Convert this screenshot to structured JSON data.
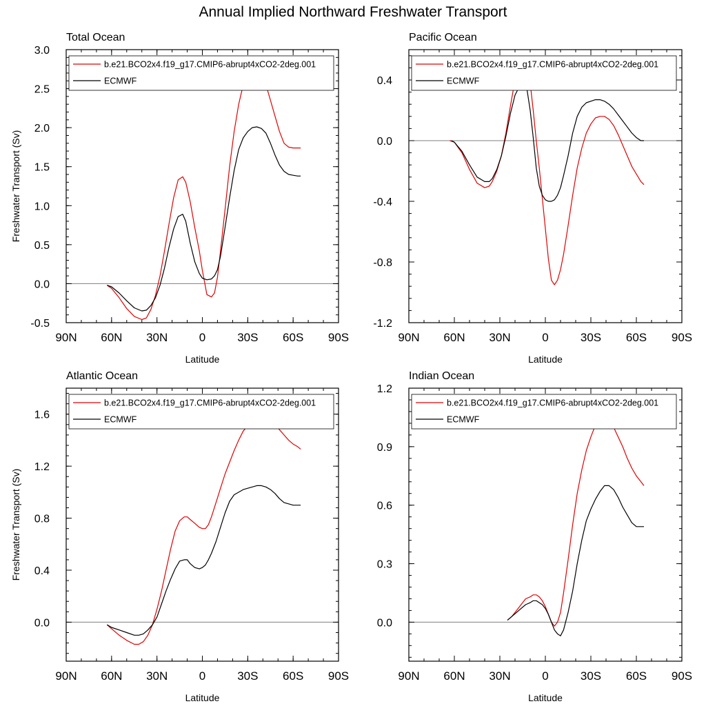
{
  "figure": {
    "title": "Annual Implied Northward Freshwater Transport"
  },
  "chart_data": [
    {
      "type": "line",
      "title": "Total Ocean",
      "xlabel": "Latitude",
      "ylabel": "Freshwater Transport (Sv)",
      "xlim": [
        -90,
        90
      ],
      "ylim": [
        -0.5,
        3.0
      ],
      "xticks": [
        -90,
        -60,
        -30,
        0,
        30,
        60,
        90
      ],
      "xtick_labels": [
        "90N",
        "60N",
        "30N",
        "0",
        "30S",
        "60S",
        "90S"
      ],
      "yticks": [
        -0.5,
        0.0,
        0.5,
        1.0,
        1.5,
        2.0,
        2.5,
        3.0
      ],
      "ytick_labels": [
        "-0.5",
        "0.0",
        "0.5",
        "1.0",
        "1.5",
        "2.0",
        "2.5",
        "3.0"
      ],
      "zero_line": true,
      "legend": "top",
      "series": [
        {
          "name": "b.e21.BCO2x4.f19_g17.CMIP6-abrupt4xCO2-2deg.001",
          "color": "#e00000",
          "x": [
            -63,
            -60,
            -55,
            -50,
            -45,
            -40,
            -37,
            -34,
            -31,
            -28,
            -25,
            -22,
            -19,
            -16,
            -13,
            -11,
            -8,
            -5,
            -2,
            0,
            3,
            6,
            8,
            10,
            12,
            15,
            18,
            21,
            24,
            27,
            30,
            33,
            36,
            39,
            42,
            45,
            48,
            51,
            54,
            57,
            60,
            63,
            65
          ],
          "y": [
            -0.02,
            -0.06,
            -0.18,
            -0.32,
            -0.42,
            -0.46,
            -0.44,
            -0.33,
            -0.15,
            0.1,
            0.42,
            0.77,
            1.1,
            1.33,
            1.37,
            1.3,
            1.05,
            0.72,
            0.42,
            0.17,
            -0.14,
            -0.17,
            -0.12,
            0.08,
            0.42,
            0.95,
            1.5,
            1.95,
            2.3,
            2.55,
            2.7,
            2.77,
            2.76,
            2.7,
            2.55,
            2.35,
            2.15,
            1.95,
            1.8,
            1.75,
            1.74,
            1.74,
            1.74
          ]
        },
        {
          "name": "ECMWF",
          "color": "#000000",
          "x": [
            -63,
            -60,
            -55,
            -50,
            -45,
            -40,
            -37,
            -34,
            -31,
            -28,
            -25,
            -22,
            -19,
            -16,
            -13,
            -11,
            -8,
            -5,
            -2,
            0,
            3,
            6,
            8,
            10,
            12,
            15,
            18,
            21,
            24,
            27,
            30,
            33,
            36,
            39,
            42,
            45,
            48,
            51,
            54,
            57,
            60,
            63,
            65
          ],
          "y": [
            -0.02,
            -0.04,
            -0.12,
            -0.22,
            -0.31,
            -0.35,
            -0.34,
            -0.28,
            -0.18,
            -0.02,
            0.2,
            0.47,
            0.7,
            0.86,
            0.89,
            0.8,
            0.52,
            0.28,
            0.13,
            0.07,
            0.05,
            0.06,
            0.1,
            0.18,
            0.35,
            0.72,
            1.1,
            1.45,
            1.72,
            1.87,
            1.95,
            2.0,
            2.01,
            1.99,
            1.93,
            1.8,
            1.65,
            1.52,
            1.44,
            1.4,
            1.39,
            1.38,
            1.38
          ]
        }
      ]
    },
    {
      "type": "line",
      "title": "Pacific Ocean",
      "xlabel": "Latitude",
      "ylabel": "",
      "xlim": [
        -90,
        90
      ],
      "ylim": [
        -1.2,
        0.6
      ],
      "xticks": [
        -90,
        -60,
        -30,
        0,
        30,
        60,
        90
      ],
      "xtick_labels": [
        "90N",
        "60N",
        "30N",
        "0",
        "30S",
        "60S",
        "90S"
      ],
      "yticks": [
        -1.2,
        -0.8,
        -0.4,
        0.0,
        0.4
      ],
      "ytick_labels": [
        "-1.2",
        "-0.8",
        "-0.4",
        "0.0",
        "0.4"
      ],
      "zero_line": true,
      "legend": "top",
      "series": [
        {
          "name": "b.e21.BCO2x4.f19_g17.CMIP6-abrupt4xCO2-2deg.001",
          "color": "#e00000",
          "x": [
            -63,
            -60,
            -55,
            -50,
            -45,
            -40,
            -37,
            -35,
            -32,
            -29,
            -26,
            -23,
            -20,
            -17,
            -14,
            -12,
            -10,
            -8,
            -6,
            -4,
            -2,
            0,
            2,
            4,
            6,
            8,
            10,
            12,
            15,
            18,
            21,
            24,
            27,
            30,
            33,
            36,
            39,
            42,
            45,
            48,
            51,
            54,
            57,
            60,
            63,
            65
          ],
          "y": [
            0.0,
            -0.01,
            -0.08,
            -0.19,
            -0.28,
            -0.31,
            -0.3,
            -0.27,
            -0.2,
            -0.1,
            0.05,
            0.23,
            0.4,
            0.5,
            0.53,
            0.5,
            0.38,
            0.2,
            0.0,
            -0.18,
            -0.38,
            -0.58,
            -0.78,
            -0.92,
            -0.95,
            -0.92,
            -0.85,
            -0.75,
            -0.56,
            -0.36,
            -0.18,
            -0.05,
            0.05,
            0.11,
            0.15,
            0.16,
            0.16,
            0.14,
            0.1,
            0.04,
            -0.03,
            -0.1,
            -0.17,
            -0.22,
            -0.27,
            -0.29
          ]
        },
        {
          "name": "ECMWF",
          "color": "#000000",
          "x": [
            -62,
            -60,
            -55,
            -50,
            -45,
            -40,
            -37,
            -35,
            -32,
            -29,
            -26,
            -23,
            -20,
            -17,
            -14,
            -12,
            -10,
            -8,
            -6,
            -4,
            -2,
            0,
            2,
            4,
            6,
            8,
            10,
            12,
            15,
            18,
            21,
            24,
            27,
            30,
            33,
            36,
            39,
            42,
            45,
            48,
            51,
            54,
            57,
            60,
            63,
            65
          ],
          "y": [
            0.0,
            -0.01,
            -0.07,
            -0.16,
            -0.24,
            -0.27,
            -0.27,
            -0.25,
            -0.19,
            -0.1,
            0.03,
            0.18,
            0.3,
            0.36,
            0.37,
            0.33,
            0.2,
            0.02,
            -0.18,
            -0.3,
            -0.36,
            -0.39,
            -0.4,
            -0.4,
            -0.39,
            -0.36,
            -0.31,
            -0.23,
            -0.1,
            0.05,
            0.16,
            0.22,
            0.25,
            0.26,
            0.27,
            0.27,
            0.26,
            0.24,
            0.21,
            0.17,
            0.13,
            0.09,
            0.05,
            0.02,
            0.0,
            0.0
          ]
        }
      ]
    },
    {
      "type": "line",
      "title": "Atlantic Ocean",
      "xlabel": "Latitude",
      "ylabel": "Freshwater Transport (Sv)",
      "xlim": [
        -90,
        90
      ],
      "ylim": [
        -0.3,
        1.8
      ],
      "xticks": [
        -90,
        -60,
        -30,
        0,
        30,
        60,
        90
      ],
      "xtick_labels": [
        "90N",
        "60N",
        "30N",
        "0",
        "30S",
        "60S",
        "90S"
      ],
      "yticks": [
        0.0,
        0.4,
        0.8,
        1.2,
        1.6
      ],
      "ytick_labels": [
        "0.0",
        "0.4",
        "0.8",
        "1.2",
        "1.6"
      ],
      "zero_line": true,
      "legend": "top",
      "series": [
        {
          "name": "b.e21.BCO2x4.f19_g17.CMIP6-abrupt4xCO2-2deg.001",
          "color": "#e00000",
          "x": [
            -63,
            -60,
            -55,
            -50,
            -45,
            -42,
            -39,
            -36,
            -33,
            -30,
            -27,
            -24,
            -21,
            -18,
            -15,
            -12,
            -10,
            -8,
            -5,
            -2,
            0,
            2,
            4,
            6,
            9,
            12,
            15,
            18,
            21,
            24,
            27,
            30,
            33,
            36,
            39,
            42,
            45,
            48,
            51,
            54,
            57,
            60,
            63,
            65
          ],
          "y": [
            -0.02,
            -0.05,
            -0.1,
            -0.14,
            -0.17,
            -0.17,
            -0.15,
            -0.1,
            -0.02,
            0.1,
            0.24,
            0.4,
            0.56,
            0.7,
            0.78,
            0.81,
            0.81,
            0.79,
            0.76,
            0.73,
            0.72,
            0.72,
            0.75,
            0.81,
            0.92,
            1.03,
            1.14,
            1.23,
            1.32,
            1.4,
            1.47,
            1.51,
            1.55,
            1.56,
            1.57,
            1.57,
            1.55,
            1.52,
            1.48,
            1.44,
            1.4,
            1.37,
            1.35,
            1.33
          ]
        },
        {
          "name": "ECMWF",
          "color": "#000000",
          "x": [
            -63,
            -60,
            -55,
            -50,
            -45,
            -42,
            -39,
            -36,
            -33,
            -30,
            -27,
            -24,
            -21,
            -18,
            -15,
            -12,
            -10,
            -8,
            -5,
            -2,
            0,
            2,
            4,
            6,
            9,
            12,
            15,
            18,
            21,
            24,
            27,
            30,
            33,
            36,
            39,
            42,
            45,
            48,
            51,
            54,
            57,
            60,
            63,
            65
          ],
          "y": [
            -0.02,
            -0.04,
            -0.06,
            -0.08,
            -0.1,
            -0.1,
            -0.09,
            -0.06,
            -0.02,
            0.04,
            0.14,
            0.24,
            0.33,
            0.41,
            0.47,
            0.48,
            0.48,
            0.45,
            0.42,
            0.41,
            0.42,
            0.44,
            0.48,
            0.53,
            0.62,
            0.73,
            0.84,
            0.93,
            0.98,
            1.0,
            1.02,
            1.03,
            1.04,
            1.05,
            1.05,
            1.04,
            1.02,
            0.99,
            0.95,
            0.92,
            0.91,
            0.9,
            0.9,
            0.9
          ]
        }
      ]
    },
    {
      "type": "line",
      "title": "Indian Ocean",
      "xlabel": "Latitude",
      "ylabel": "",
      "xlim": [
        -90,
        90
      ],
      "ylim": [
        -0.2,
        1.2
      ],
      "xticks": [
        -90,
        -60,
        -30,
        0,
        30,
        60,
        90
      ],
      "xtick_labels": [
        "90N",
        "60N",
        "30N",
        "0",
        "30S",
        "60S",
        "90S"
      ],
      "yticks": [
        0.0,
        0.3,
        0.6,
        0.9,
        1.2
      ],
      "ytick_labels": [
        "0.0",
        "0.3",
        "0.6",
        "0.9",
        "1.2"
      ],
      "zero_line": true,
      "legend": "top",
      "series": [
        {
          "name": "b.e21.BCO2x4.f19_g17.CMIP6-abrupt4xCO2-2deg.001",
          "color": "#e00000",
          "x": [
            -25,
            -22,
            -19,
            -16,
            -13,
            -10,
            -8,
            -6,
            -4,
            -2,
            0,
            2,
            4,
            6,
            8,
            10,
            12,
            15,
            18,
            21,
            24,
            27,
            30,
            33,
            36,
            39,
            42,
            45,
            48,
            51,
            54,
            57,
            60,
            63,
            65
          ],
          "y": [
            0.01,
            0.03,
            0.06,
            0.09,
            0.12,
            0.13,
            0.14,
            0.14,
            0.13,
            0.11,
            0.08,
            0.04,
            0.0,
            -0.02,
            0.0,
            0.05,
            0.15,
            0.32,
            0.5,
            0.66,
            0.78,
            0.88,
            0.95,
            1.01,
            1.04,
            1.04,
            1.03,
            1.0,
            0.95,
            0.9,
            0.84,
            0.79,
            0.75,
            0.72,
            0.7
          ]
        },
        {
          "name": "ECMWF",
          "color": "#000000",
          "x": [
            -25,
            -22,
            -19,
            -16,
            -13,
            -10,
            -8,
            -6,
            -4,
            -2,
            0,
            2,
            4,
            6,
            8,
            10,
            12,
            15,
            18,
            21,
            24,
            27,
            30,
            33,
            36,
            39,
            42,
            45,
            48,
            51,
            54,
            57,
            60,
            63,
            65
          ],
          "y": [
            0.01,
            0.03,
            0.05,
            0.07,
            0.09,
            0.1,
            0.11,
            0.11,
            0.1,
            0.09,
            0.07,
            0.04,
            0.0,
            -0.04,
            -0.06,
            -0.07,
            -0.04,
            0.05,
            0.16,
            0.3,
            0.42,
            0.52,
            0.58,
            0.63,
            0.67,
            0.7,
            0.7,
            0.68,
            0.64,
            0.59,
            0.55,
            0.51,
            0.49,
            0.49,
            0.49
          ]
        }
      ]
    }
  ]
}
